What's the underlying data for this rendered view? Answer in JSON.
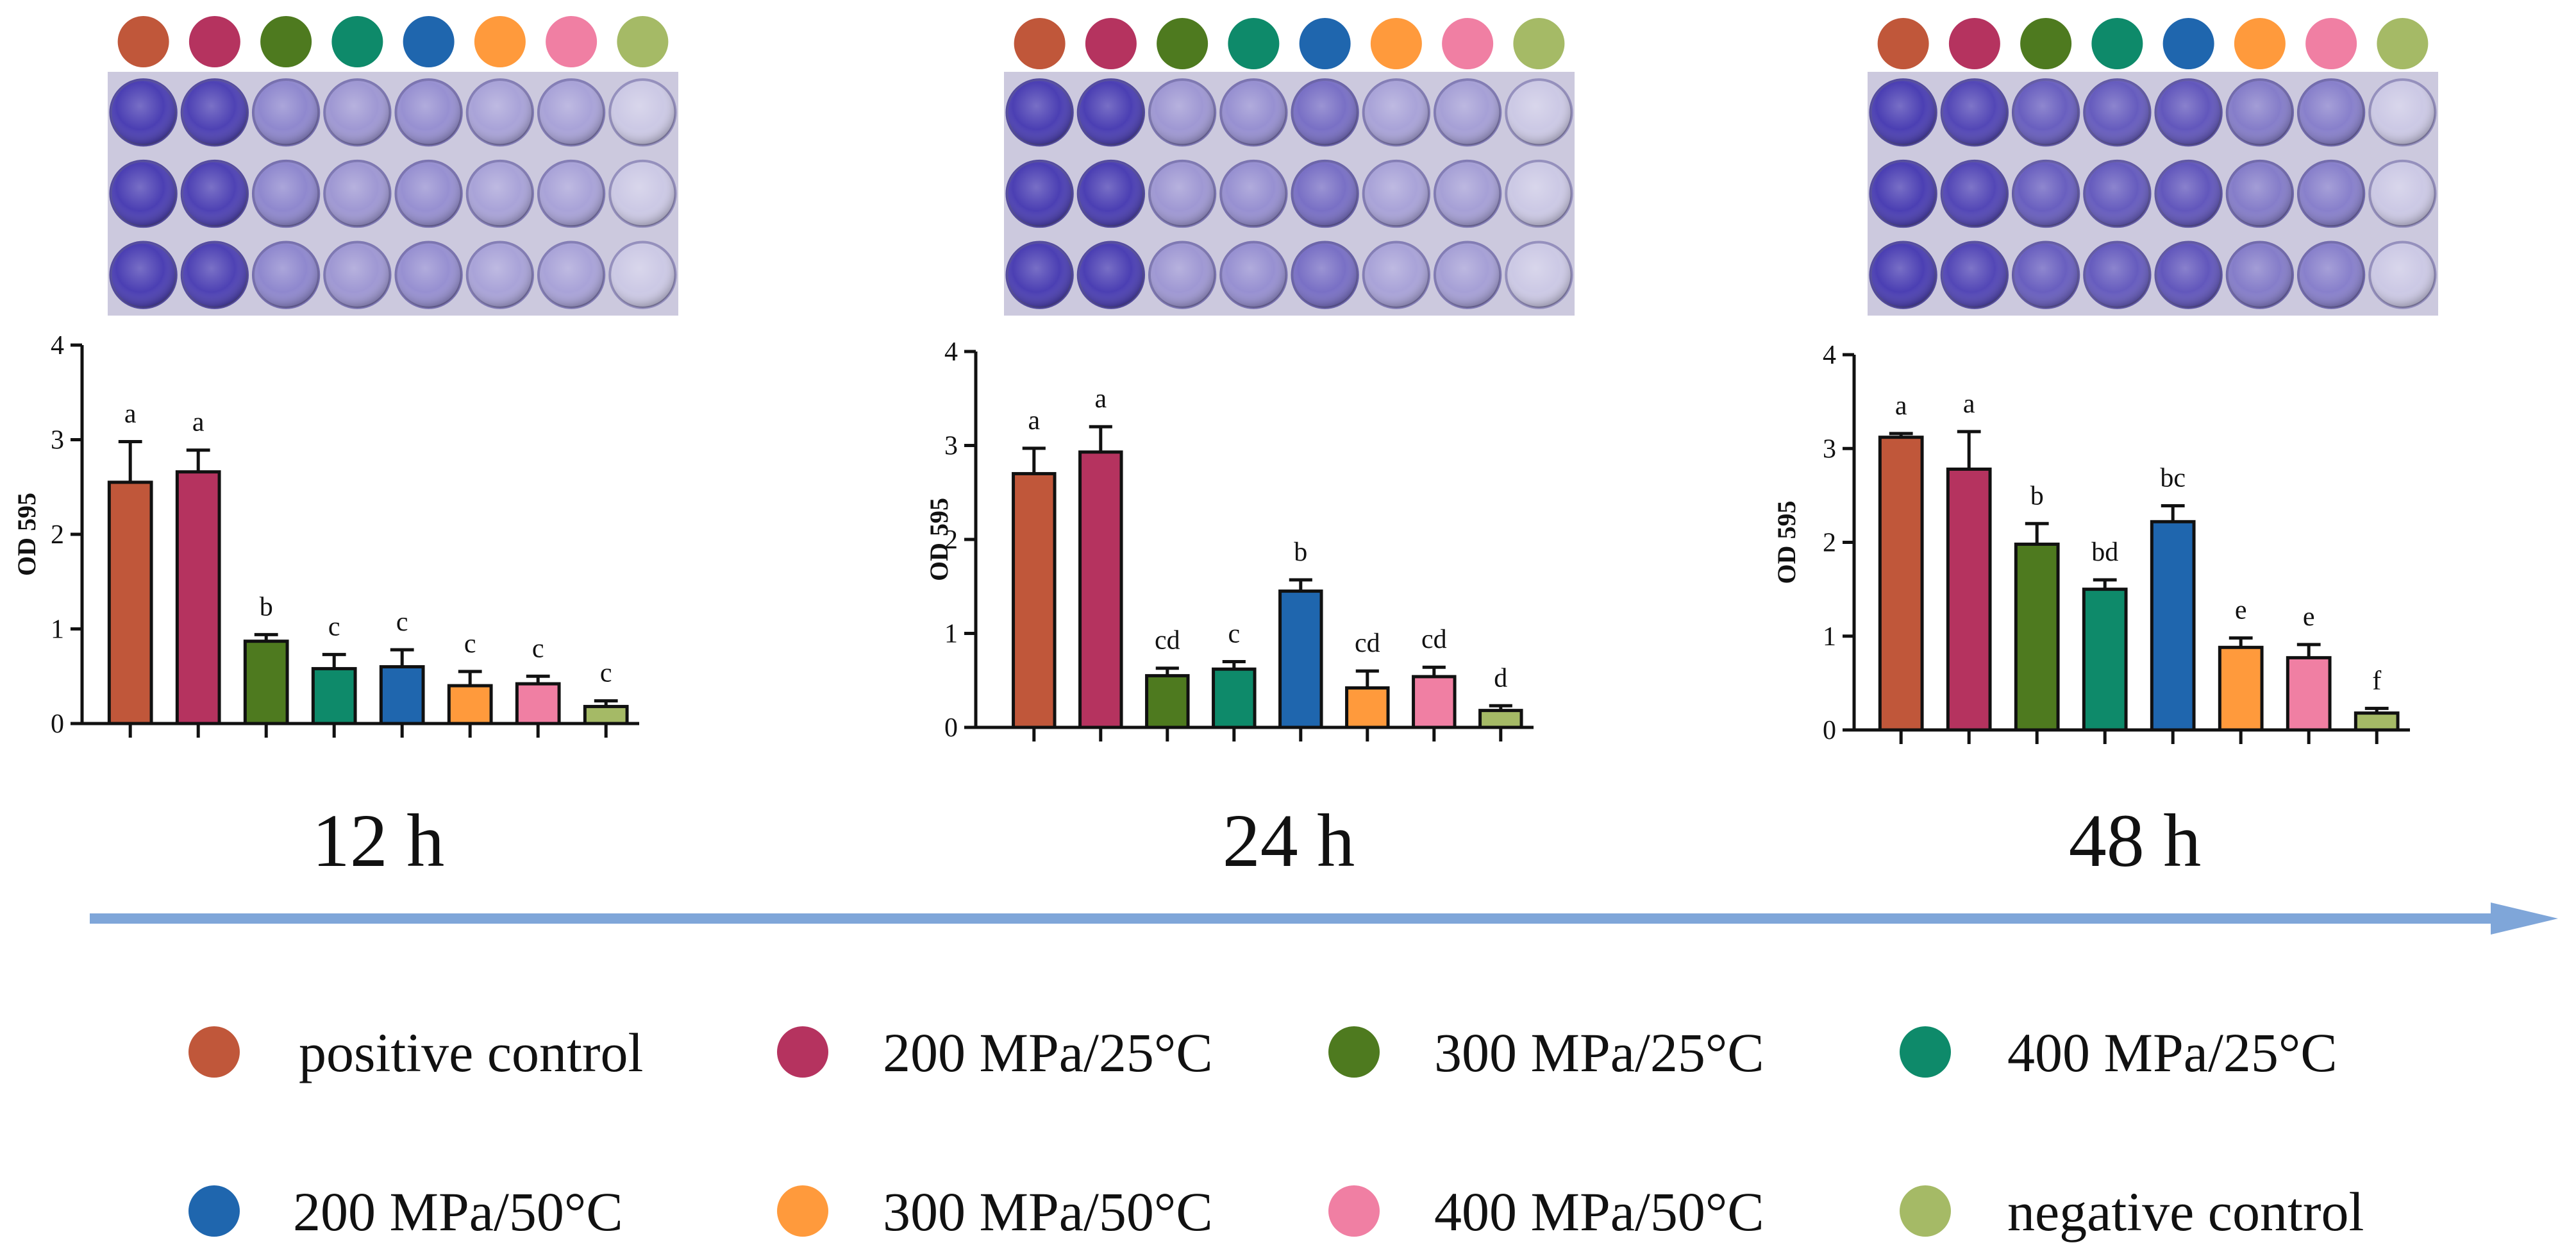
{
  "legend": [
    {
      "label": "positive control",
      "color": "#C0573A"
    },
    {
      "label": "200 MPa/25°C",
      "color": "#B5335F"
    },
    {
      "label": "300 MPa/25°C",
      "color": "#4E7A1F"
    },
    {
      "label": "400 MPa/25°C",
      "color": "#0E8A6A"
    },
    {
      "label": "200 MPa/50°C",
      "color": "#1F66AE"
    },
    {
      "label": "300 MPa/50°C",
      "color": "#FF9A3C"
    },
    {
      "label": "400 MPa/50°C",
      "color": "#F07FA3"
    },
    {
      "label": "negative control",
      "color": "#A5BA66"
    }
  ],
  "plate": {
    "well_color": "#4b3fb3",
    "background_color": "#ccc9de"
  },
  "chart_data": [
    {
      "type": "bar",
      "title": "12 h",
      "xlabel": "",
      "ylabel": "OD 595",
      "ylim": [
        0,
        4
      ],
      "yticks": [
        0,
        1,
        2,
        3,
        4
      ],
      "values": [
        2.55,
        2.66,
        0.87,
        0.58,
        0.6,
        0.4,
        0.42,
        0.18
      ],
      "errors": [
        0.43,
        0.23,
        0.07,
        0.15,
        0.18,
        0.15,
        0.08,
        0.06
      ],
      "labels": [
        "a",
        "a",
        "b",
        "c",
        "c",
        "c",
        "c",
        "c"
      ],
      "well_intensity": [
        1.0,
        0.98,
        0.55,
        0.45,
        0.5,
        0.38,
        0.38,
        0.15
      ]
    },
    {
      "type": "bar",
      "title": "24 h",
      "xlabel": "",
      "ylabel": "OD 595",
      "ylim": [
        0,
        4
      ],
      "yticks": [
        0,
        1,
        2,
        3,
        4
      ],
      "values": [
        2.7,
        2.93,
        0.55,
        0.62,
        1.45,
        0.42,
        0.54,
        0.18
      ],
      "errors": [
        0.27,
        0.27,
        0.08,
        0.08,
        0.12,
        0.18,
        0.1,
        0.05
      ],
      "labels": [
        "a",
        "a",
        "cd",
        "c",
        "b",
        "cd",
        "cd",
        "d"
      ],
      "well_intensity": [
        1.0,
        1.0,
        0.45,
        0.5,
        0.7,
        0.38,
        0.4,
        0.15
      ]
    },
    {
      "type": "bar",
      "title": "48 h",
      "xlabel": "",
      "ylabel": "OD 595",
      "ylim": [
        0,
        4
      ],
      "yticks": [
        0,
        1,
        2,
        3,
        4
      ],
      "values": [
        3.12,
        2.78,
        1.98,
        1.5,
        2.22,
        0.88,
        0.77,
        0.18
      ],
      "errors": [
        0.04,
        0.4,
        0.22,
        0.1,
        0.17,
        0.1,
        0.14,
        0.05
      ],
      "labels": [
        "a",
        "a",
        "b",
        "bd",
        "bc",
        "e",
        "e",
        "f"
      ],
      "well_intensity": [
        1.0,
        0.95,
        0.8,
        0.82,
        0.85,
        0.62,
        0.6,
        0.15
      ]
    }
  ]
}
